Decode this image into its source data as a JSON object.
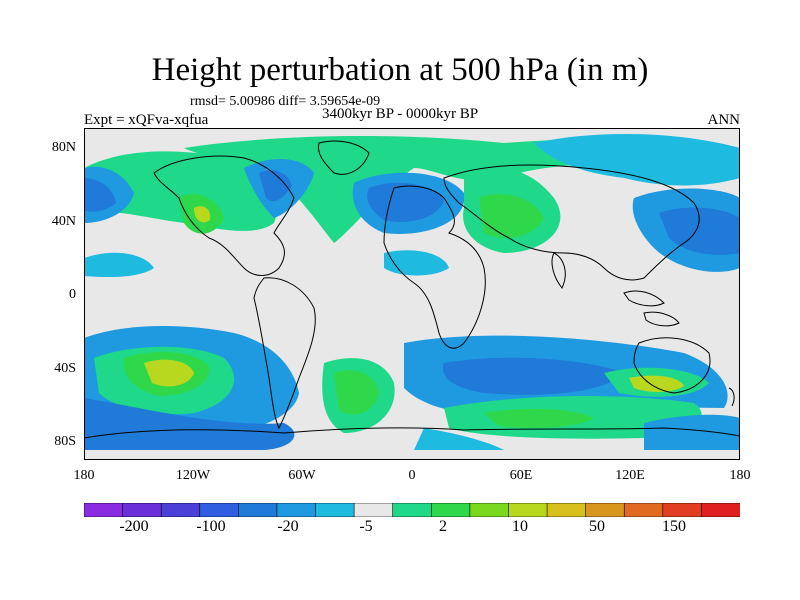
{
  "title": "Height perturbation at 500 hPa (in m)",
  "stats": "rmsd= 5.00986 diff= 3.59654e-09",
  "period": "3400kyr BP - 0000kyr BP",
  "expt": "Expt = xQFva-xqfua",
  "season": "ANN",
  "y_ticks": [
    "80N",
    "40N",
    "0",
    "40S",
    "80S"
  ],
  "x_ticks": [
    "180",
    "120W",
    "60W",
    "0",
    "60E",
    "120E",
    "180"
  ],
  "colorbar": {
    "labels": [
      "-200",
      "-100",
      "-20",
      "-5",
      "2",
      "10",
      "50",
      "150"
    ],
    "colors": [
      "#8a2be2",
      "#6a2fd8",
      "#4b3fd8",
      "#2f5fe0",
      "#1f7ad8",
      "#1f9ae0",
      "#1fbadf",
      "#e8e8e8",
      "#1fd88a",
      "#2fd84a",
      "#7ad81f",
      "#b8d81f",
      "#d8c01f",
      "#d8961f",
      "#e06a1f",
      "#e0401f",
      "#e01f1f"
    ]
  },
  "palette": {
    "neutral": "#e8e8e8",
    "light_blue": "#1fbadf",
    "mid_blue": "#1f9ae0",
    "blue": "#1f7ad8",
    "deep_blue": "#2f5fe0",
    "green": "#1fd88a",
    "lime": "#2fd84a",
    "yellow_green": "#b8d81f"
  }
}
